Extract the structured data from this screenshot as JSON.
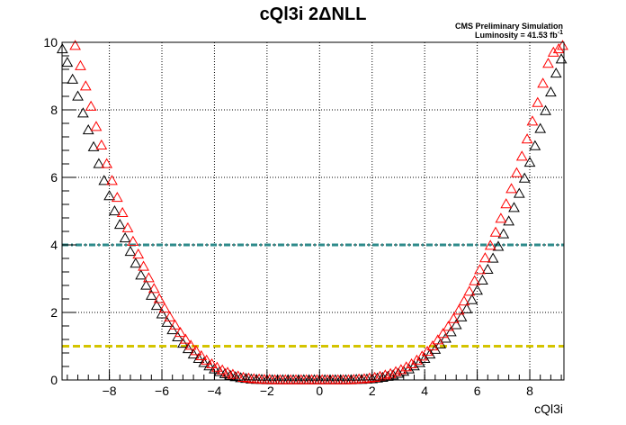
{
  "chart_data": {
    "type": "scatter",
    "title": "cQl3i 2ΔNLL",
    "xlabel": "cQl3i",
    "ylabel": "",
    "xlim": [
      -9.8,
      9.3
    ],
    "ylim": [
      0,
      10
    ],
    "grid": true,
    "annotations": {
      "line1": "CMS Preliminary Simulation",
      "line2": "Luminosity = 41.53 fb",
      "line2_sup": "-1"
    },
    "x_ticks": [
      -8,
      -6,
      -4,
      -2,
      0,
      2,
      4,
      6,
      8
    ],
    "x_tick_labels": [
      "−8",
      "−6",
      "−4",
      "−2",
      "0",
      "2",
      "4",
      "6",
      "8"
    ],
    "y_ticks": [
      0,
      2,
      4,
      6,
      8,
      10
    ],
    "y_tick_labels": [
      "0",
      "2",
      "4",
      "6",
      "8",
      "10"
    ],
    "series": [
      {
        "color": "#000000",
        "marker": "open-triangle",
        "x": [
          -9.79,
          -9.6,
          -9.4,
          -9.2,
          -9.0,
          -8.8,
          -8.6,
          -8.4,
          -8.2,
          -8.0,
          -7.8,
          -7.6,
          -7.4,
          -7.2,
          -7.0,
          -6.8,
          -6.6,
          -6.4,
          -6.2,
          -6.0,
          -5.8,
          -5.6,
          -5.4,
          -5.2,
          -5.0,
          -4.8,
          -4.6,
          -4.4,
          -4.2,
          -4.0,
          -3.8,
          -3.6,
          -3.4,
          -3.2,
          -3.0,
          -2.8,
          -2.6,
          -2.4,
          -2.2,
          -2.0,
          -1.8,
          -1.6,
          -1.4,
          -1.2,
          -1.0,
          -0.8,
          -0.6,
          -0.4,
          -0.2,
          0.0,
          0.2,
          0.4,
          0.6,
          0.8,
          1.0,
          1.2,
          1.4,
          1.6,
          1.8,
          2.0,
          2.2,
          2.4,
          2.6,
          2.8,
          3.0,
          3.2,
          3.4,
          3.6,
          3.8,
          4.0,
          4.2,
          4.4,
          4.6,
          4.8,
          5.0,
          5.2,
          5.4,
          5.6,
          5.8,
          6.0,
          6.2,
          6.4,
          6.6,
          6.8,
          7.0,
          7.2,
          7.4,
          7.6,
          7.8,
          8.0,
          8.2,
          8.4,
          8.6,
          8.8,
          9.0,
          9.2
        ],
        "y": [
          9.8,
          9.4,
          8.9,
          8.4,
          7.9,
          7.4,
          6.9,
          6.4,
          5.9,
          5.45,
          5.0,
          4.6,
          4.2,
          3.8,
          3.45,
          3.1,
          2.8,
          2.5,
          2.2,
          1.95,
          1.7,
          1.48,
          1.27,
          1.08,
          0.92,
          0.76,
          0.63,
          0.51,
          0.41,
          0.32,
          0.24,
          0.18,
          0.13,
          0.09,
          0.06,
          0.04,
          0.02,
          0.01,
          0.01,
          0.0,
          0.0,
          0.0,
          0.0,
          0.0,
          0.0,
          0.0,
          0.0,
          0.0,
          0.0,
          0.0,
          0.0,
          0.0,
          0.0,
          0.0,
          0.0,
          0.0,
          0.01,
          0.01,
          0.02,
          0.03,
          0.05,
          0.07,
          0.1,
          0.14,
          0.19,
          0.25,
          0.32,
          0.41,
          0.51,
          0.63,
          0.76,
          0.9,
          1.06,
          1.23,
          1.42,
          1.63,
          1.86,
          2.1,
          2.37,
          2.65,
          2.95,
          3.27,
          3.6,
          3.95,
          4.32,
          4.7,
          5.1,
          5.52,
          5.97,
          6.44,
          6.93,
          7.44,
          7.97,
          8.52,
          9.08,
          9.5
        ]
      },
      {
        "color": "#ff0000",
        "marker": "open-triangle",
        "x": [
          -9.3,
          -9.1,
          -8.9,
          -8.7,
          -8.5,
          -8.3,
          -8.1,
          -7.9,
          -7.7,
          -7.5,
          -7.3,
          -7.1,
          -6.9,
          -6.7,
          -6.5,
          -6.3,
          -6.1,
          -5.9,
          -5.7,
          -5.5,
          -5.3,
          -5.1,
          -4.9,
          -4.7,
          -4.5,
          -4.3,
          -4.1,
          -3.9,
          -3.7,
          -3.5,
          -3.3,
          -3.1,
          -2.9,
          -2.7,
          -2.5,
          -2.3,
          -2.1,
          -1.9,
          -1.7,
          -1.5,
          -1.3,
          -1.1,
          -0.9,
          -0.7,
          -0.5,
          -0.3,
          -0.1,
          0.1,
          0.3,
          0.5,
          0.7,
          0.9,
          1.1,
          1.3,
          1.5,
          1.7,
          1.9,
          2.1,
          2.3,
          2.5,
          2.7,
          2.9,
          3.1,
          3.3,
          3.5,
          3.7,
          3.9,
          4.1,
          4.3,
          4.5,
          4.7,
          4.9,
          5.1,
          5.3,
          5.5,
          5.7,
          5.9,
          6.1,
          6.3,
          6.5,
          6.7,
          6.9,
          7.1,
          7.3,
          7.5,
          7.7,
          7.9,
          8.1,
          8.3,
          8.5,
          8.7,
          8.9,
          9.1,
          9.25
        ],
        "y": [
          9.9,
          9.3,
          8.7,
          8.1,
          7.5,
          6.95,
          6.4,
          5.9,
          5.4,
          4.95,
          4.5,
          4.1,
          3.72,
          3.36,
          3.02,
          2.7,
          2.4,
          2.12,
          1.86,
          1.62,
          1.4,
          1.2,
          1.02,
          0.86,
          0.71,
          0.58,
          0.47,
          0.37,
          0.29,
          0.22,
          0.16,
          0.11,
          0.07,
          0.05,
          0.03,
          0.02,
          0.01,
          0.01,
          0.0,
          0.0,
          0.0,
          0.0,
          0.0,
          0.0,
          0.0,
          0.0,
          0.0,
          0.0,
          0.0,
          0.0,
          0.0,
          0.0,
          0.0,
          0.01,
          0.02,
          0.03,
          0.05,
          0.07,
          0.1,
          0.14,
          0.18,
          0.24,
          0.3,
          0.38,
          0.47,
          0.58,
          0.7,
          0.84,
          1.0,
          1.18,
          1.37,
          1.58,
          1.81,
          2.06,
          2.33,
          2.62,
          2.93,
          3.26,
          3.61,
          3.98,
          4.37,
          4.78,
          5.21,
          5.66,
          6.13,
          6.62,
          7.13,
          7.66,
          8.21,
          8.78,
          9.37,
          9.7,
          9.8,
          9.9
        ]
      }
    ],
    "reference_lines": [
      {
        "y": 4,
        "color": "#2e8b8b",
        "style": "dash-dot"
      },
      {
        "y": 1,
        "color": "#d4c400",
        "style": "dashed"
      }
    ]
  }
}
